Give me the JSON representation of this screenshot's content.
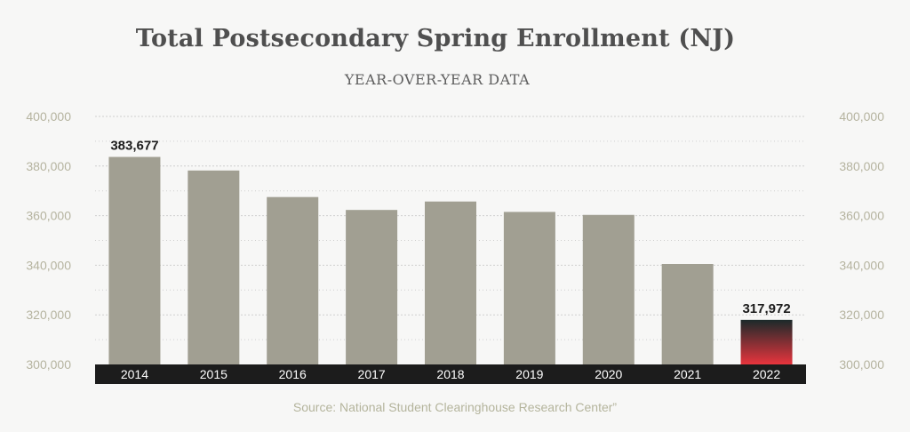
{
  "chart_data": {
    "type": "bar",
    "title": "Total Postsecondary Spring Enrollment (NJ)",
    "subtitle": "YEAR-OVER-YEAR DATA",
    "source": "Source: National Student Clearinghouse Research Center”",
    "categories": [
      "2014",
      "2015",
      "2016",
      "2017",
      "2018",
      "2019",
      "2020",
      "2021",
      "2022"
    ],
    "values": [
      383677,
      378200,
      367500,
      362300,
      365700,
      361500,
      360300,
      340500,
      317972
    ],
    "data_labels": [
      {
        "category": "2014",
        "text": "383,677"
      },
      {
        "category": "2022",
        "text": "317,972"
      }
    ],
    "ylim": [
      300000,
      400000
    ],
    "yticks": [
      300000,
      320000,
      340000,
      360000,
      380000,
      400000
    ],
    "ytick_labels": [
      "300,000",
      "320,000",
      "340,000",
      "360,000",
      "380,000",
      "400,000"
    ],
    "y_axis_both_sides": true,
    "grid": true,
    "xlabel": "",
    "ylabel": "",
    "colors": {
      "bar": "#a19f92",
      "highlight_top": "#1b2a2a",
      "highlight_bottom": "#e8343d",
      "axis_band": "#1c1c1c",
      "tick_label": "#b5b39f",
      "grid": "#cfcfcf"
    },
    "highlight_category": "2022"
  }
}
